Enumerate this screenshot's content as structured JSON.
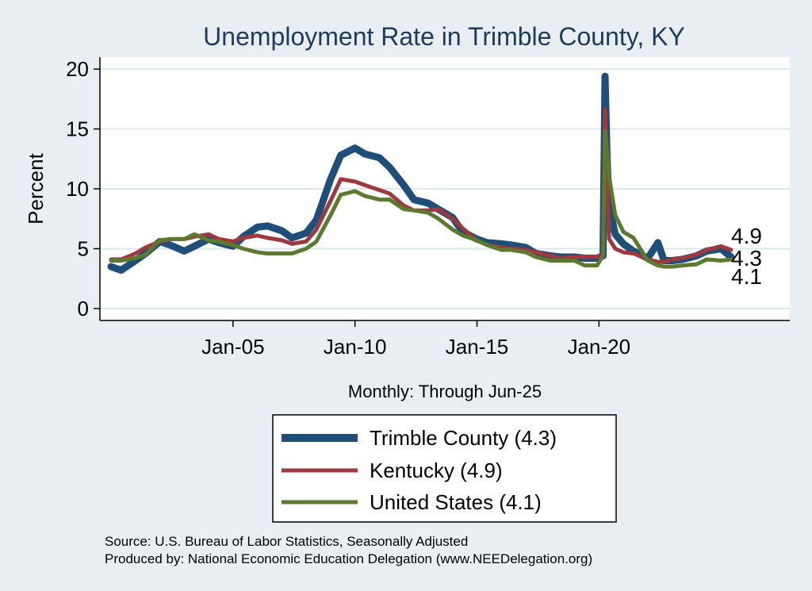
{
  "chart_data": {
    "type": "line",
    "title": "Unemployment Rate in Trimble  County, KY",
    "xlabel": "Monthly: Through Jun-25",
    "ylabel": "Percent",
    "x_range": [
      "2000-01",
      "2025-06"
    ],
    "x_ticks": [
      "Jan-05",
      "Jan-10",
      "Jan-15",
      "Jan-20"
    ],
    "y_ticks": [
      0,
      5,
      10,
      15,
      20
    ],
    "ylim": [
      -1,
      21
    ],
    "grid": true,
    "legend_position": "bottom",
    "series": [
      {
        "name": "Trimble  County (4.3)",
        "color": "#1f4e79",
        "points": [
          [
            "2000-01",
            3.5
          ],
          [
            "2000-06",
            3.2
          ],
          [
            "2001-01",
            4.0
          ],
          [
            "2001-06",
            4.6
          ],
          [
            "2002-01",
            5.6
          ],
          [
            "2002-06",
            5.3
          ],
          [
            "2003-01",
            4.8
          ],
          [
            "2003-06",
            5.2
          ],
          [
            "2004-01",
            5.8
          ],
          [
            "2004-06",
            5.5
          ],
          [
            "2005-01",
            5.2
          ],
          [
            "2005-06",
            6.0
          ],
          [
            "2006-01",
            6.8
          ],
          [
            "2006-06",
            6.9
          ],
          [
            "2007-01",
            6.5
          ],
          [
            "2007-06",
            5.9
          ],
          [
            "2008-01",
            6.3
          ],
          [
            "2008-06",
            7.4
          ],
          [
            "2009-01",
            10.8
          ],
          [
            "2009-06",
            12.8
          ],
          [
            "2010-01",
            13.4
          ],
          [
            "2010-06",
            12.9
          ],
          [
            "2011-01",
            12.6
          ],
          [
            "2011-06",
            11.8
          ],
          [
            "2012-01",
            10.3
          ],
          [
            "2012-06",
            9.1
          ],
          [
            "2013-01",
            8.8
          ],
          [
            "2013-06",
            8.3
          ],
          [
            "2014-01",
            7.6
          ],
          [
            "2014-06",
            6.4
          ],
          [
            "2015-01",
            5.8
          ],
          [
            "2015-06",
            5.5
          ],
          [
            "2016-01",
            5.4
          ],
          [
            "2016-06",
            5.3
          ],
          [
            "2017-01",
            5.1
          ],
          [
            "2017-06",
            4.6
          ],
          [
            "2018-01",
            4.4
          ],
          [
            "2018-06",
            4.3
          ],
          [
            "2019-01",
            4.3
          ],
          [
            "2019-06",
            4.2
          ],
          [
            "2019-12",
            4.2
          ],
          [
            "2020-03",
            4.4
          ],
          [
            "2020-04",
            19.4
          ],
          [
            "2020-05",
            12.5
          ],
          [
            "2020-06",
            8.5
          ],
          [
            "2020-09",
            6.2
          ],
          [
            "2021-01",
            5.4
          ],
          [
            "2021-06",
            4.8
          ],
          [
            "2022-01",
            4.2
          ],
          [
            "2022-06",
            5.5
          ],
          [
            "2022-09",
            4.0
          ],
          [
            "2023-01",
            4.0
          ],
          [
            "2023-06",
            4.1
          ],
          [
            "2024-01",
            4.4
          ],
          [
            "2024-06",
            4.8
          ],
          [
            "2025-01",
            5.0
          ],
          [
            "2025-06",
            4.3
          ]
        ]
      },
      {
        "name": "Kentucky (4.9)",
        "color": "#a0393f",
        "points": [
          [
            "2000-01",
            4.1
          ],
          [
            "2000-06",
            4.1
          ],
          [
            "2001-01",
            4.6
          ],
          [
            "2001-06",
            5.1
          ],
          [
            "2002-01",
            5.6
          ],
          [
            "2002-06",
            5.8
          ],
          [
            "2003-01",
            5.8
          ],
          [
            "2003-06",
            6.0
          ],
          [
            "2004-01",
            6.2
          ],
          [
            "2004-06",
            5.8
          ],
          [
            "2005-01",
            5.6
          ],
          [
            "2005-06",
            5.9
          ],
          [
            "2006-01",
            6.1
          ],
          [
            "2006-06",
            5.9
          ],
          [
            "2007-01",
            5.7
          ],
          [
            "2007-06",
            5.4
          ],
          [
            "2008-01",
            5.6
          ],
          [
            "2008-06",
            6.6
          ],
          [
            "2009-01",
            9.0
          ],
          [
            "2009-06",
            10.8
          ],
          [
            "2010-01",
            10.6
          ],
          [
            "2010-06",
            10.3
          ],
          [
            "2011-01",
            9.9
          ],
          [
            "2011-06",
            9.6
          ],
          [
            "2012-01",
            8.6
          ],
          [
            "2012-06",
            8.2
          ],
          [
            "2013-01",
            8.2
          ],
          [
            "2013-06",
            8.3
          ],
          [
            "2014-01",
            7.5
          ],
          [
            "2014-06",
            6.7
          ],
          [
            "2015-01",
            5.7
          ],
          [
            "2015-06",
            5.3
          ],
          [
            "2016-01",
            5.1
          ],
          [
            "2016-06",
            5.0
          ],
          [
            "2017-01",
            4.9
          ],
          [
            "2017-06",
            4.7
          ],
          [
            "2018-01",
            4.4
          ],
          [
            "2018-06",
            4.2
          ],
          [
            "2019-01",
            4.3
          ],
          [
            "2019-06",
            4.3
          ],
          [
            "2019-12",
            4.3
          ],
          [
            "2020-03",
            4.5
          ],
          [
            "2020-04",
            16.6
          ],
          [
            "2020-05",
            11.0
          ],
          [
            "2020-06",
            5.8
          ],
          [
            "2020-09",
            5.0
          ],
          [
            "2021-01",
            4.7
          ],
          [
            "2021-06",
            4.6
          ],
          [
            "2022-01",
            4.1
          ],
          [
            "2022-06",
            3.9
          ],
          [
            "2022-09",
            3.9
          ],
          [
            "2023-01",
            4.1
          ],
          [
            "2023-06",
            4.2
          ],
          [
            "2024-01",
            4.5
          ],
          [
            "2024-06",
            4.9
          ],
          [
            "2025-01",
            5.2
          ],
          [
            "2025-06",
            4.9
          ]
        ]
      },
      {
        "name": "United States (4.1)",
        "color": "#5b7a2e",
        "points": [
          [
            "2000-01",
            4.0
          ],
          [
            "2000-06",
            4.0
          ],
          [
            "2001-01",
            4.2
          ],
          [
            "2001-06",
            4.5
          ],
          [
            "2002-01",
            5.7
          ],
          [
            "2002-06",
            5.8
          ],
          [
            "2003-01",
            5.8
          ],
          [
            "2003-06",
            6.2
          ],
          [
            "2004-01",
            5.7
          ],
          [
            "2004-06",
            5.6
          ],
          [
            "2005-01",
            5.3
          ],
          [
            "2005-06",
            5.0
          ],
          [
            "2006-01",
            4.7
          ],
          [
            "2006-06",
            4.6
          ],
          [
            "2007-01",
            4.6
          ],
          [
            "2007-06",
            4.6
          ],
          [
            "2008-01",
            5.0
          ],
          [
            "2008-06",
            5.6
          ],
          [
            "2009-01",
            7.8
          ],
          [
            "2009-06",
            9.5
          ],
          [
            "2010-01",
            9.8
          ],
          [
            "2010-06",
            9.4
          ],
          [
            "2011-01",
            9.1
          ],
          [
            "2011-06",
            9.1
          ],
          [
            "2012-01",
            8.3
          ],
          [
            "2012-06",
            8.2
          ],
          [
            "2013-01",
            8.0
          ],
          [
            "2013-06",
            7.5
          ],
          [
            "2014-01",
            6.6
          ],
          [
            "2014-06",
            6.1
          ],
          [
            "2015-01",
            5.7
          ],
          [
            "2015-06",
            5.3
          ],
          [
            "2016-01",
            4.9
          ],
          [
            "2016-06",
            4.9
          ],
          [
            "2017-01",
            4.7
          ],
          [
            "2017-06",
            4.3
          ],
          [
            "2018-01",
            4.0
          ],
          [
            "2018-06",
            4.0
          ],
          [
            "2019-01",
            4.0
          ],
          [
            "2019-06",
            3.6
          ],
          [
            "2019-12",
            3.6
          ],
          [
            "2020-03",
            4.4
          ],
          [
            "2020-04",
            14.8
          ],
          [
            "2020-05",
            13.2
          ],
          [
            "2020-06",
            11.0
          ],
          [
            "2020-09",
            7.8
          ],
          [
            "2021-01",
            6.4
          ],
          [
            "2021-06",
            5.9
          ],
          [
            "2022-01",
            4.0
          ],
          [
            "2022-06",
            3.6
          ],
          [
            "2022-09",
            3.5
          ],
          [
            "2023-01",
            3.5
          ],
          [
            "2023-06",
            3.6
          ],
          [
            "2024-01",
            3.7
          ],
          [
            "2024-06",
            4.1
          ],
          [
            "2025-01",
            4.0
          ],
          [
            "2025-06",
            4.1
          ]
        ]
      }
    ],
    "end_labels": [
      "4.9",
      "4.3",
      "4.1"
    ]
  },
  "source": {
    "line1": "Source: U.S. Bureau of Labor Statistics, Seasonally Adjusted",
    "line2": "Produced by: National Economic Education Delegation (www.NEEDelegation.org)"
  }
}
